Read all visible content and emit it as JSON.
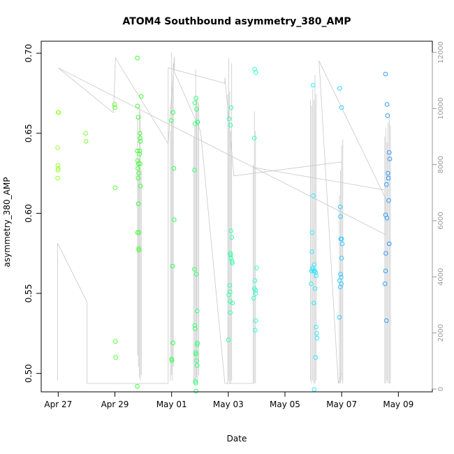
{
  "chart_data": {
    "type": "scatter",
    "title": "ATOM4 Southbound asymmetry_380_AMP",
    "xlabel": "Date",
    "ylabel": "asymmetry_380_AMP",
    "x_unit": "days since Apr 27",
    "xlim": [
      -0.6,
      13.2
    ],
    "ylim": [
      0.4885,
      0.7075
    ],
    "y2lim": [
      -100,
      12400
    ],
    "x_ticks": [
      {
        "value": 0,
        "label": "Apr 27"
      },
      {
        "value": 2,
        "label": "Apr 29"
      },
      {
        "value": 4,
        "label": "May 01"
      },
      {
        "value": 6,
        "label": "May 03"
      },
      {
        "value": 8,
        "label": "May 05"
      },
      {
        "value": 10,
        "label": "May 07"
      },
      {
        "value": 12,
        "label": "May 09"
      }
    ],
    "y_ticks": [
      {
        "value": 0.5,
        "label": "0.50"
      },
      {
        "value": 0.55,
        "label": "0.55"
      },
      {
        "value": 0.6,
        "label": "0.60"
      },
      {
        "value": 0.65,
        "label": "0.65"
      },
      {
        "value": 0.7,
        "label": "0.70"
      }
    ],
    "y2_ticks": [
      {
        "value": 0,
        "label": "0"
      },
      {
        "value": 2000,
        "label": "2000"
      },
      {
        "value": 4000,
        "label": "4000"
      },
      {
        "value": 6000,
        "label": "6000"
      },
      {
        "value": 8000,
        "label": "8000"
      },
      {
        "value": 10000,
        "label": "10000"
      },
      {
        "value": 12000,
        "label": "12000"
      }
    ],
    "color_scale": {
      "start": "#99ff33",
      "mid1": "#33ff33",
      "mid2": "#33ffff",
      "end": "#3399ff"
    },
    "line_color": "#c8c8c8",
    "points": [
      {
        "x": 0.0,
        "y": 0.663
      },
      {
        "x": 0.02,
        "y": 0.663
      },
      {
        "x": -0.02,
        "y": 0.641
      },
      {
        "x": -0.01,
        "y": 0.63
      },
      {
        "x": 0.0,
        "y": 0.628
      },
      {
        "x": -0.01,
        "y": 0.627
      },
      {
        "x": -0.02,
        "y": 0.622
      },
      {
        "x": 0.97,
        "y": 0.65
      },
      {
        "x": 0.98,
        "y": 0.645
      },
      {
        "x": 1.99,
        "y": 0.668
      },
      {
        "x": 2.0,
        "y": 0.666
      },
      {
        "x": 2.01,
        "y": 0.616
      },
      {
        "x": 2.02,
        "y": 0.52
      },
      {
        "x": 2.03,
        "y": 0.51
      },
      {
        "x": 2.79,
        "y": 0.697
      },
      {
        "x": 2.8,
        "y": 0.667
      },
      {
        "x": 2.82,
        "y": 0.66
      },
      {
        "x": 2.79,
        "y": 0.639
      },
      {
        "x": 2.8,
        "y": 0.633
      },
      {
        "x": 2.83,
        "y": 0.631
      },
      {
        "x": 2.81,
        "y": 0.628
      },
      {
        "x": 2.84,
        "y": 0.625
      },
      {
        "x": 2.82,
        "y": 0.622
      },
      {
        "x": 2.83,
        "y": 0.606
      },
      {
        "x": 2.8,
        "y": 0.588
      },
      {
        "x": 2.85,
        "y": 0.588
      },
      {
        "x": 2.84,
        "y": 0.578
      },
      {
        "x": 2.85,
        "y": 0.577
      },
      {
        "x": 2.79,
        "y": 0.492
      },
      {
        "x": 2.88,
        "y": 0.65
      },
      {
        "x": 2.89,
        "y": 0.647
      },
      {
        "x": 2.9,
        "y": 0.645
      },
      {
        "x": 2.88,
        "y": 0.639
      },
      {
        "x": 2.87,
        "y": 0.637
      },
      {
        "x": 2.89,
        "y": 0.631
      },
      {
        "x": 2.9,
        "y": 0.617
      },
      {
        "x": 2.93,
        "y": 0.673
      },
      {
        "x": 3.99,
        "y": 0.658
      },
      {
        "x": 4.05,
        "y": 0.663
      },
      {
        "x": 4.08,
        "y": 0.628
      },
      {
        "x": 4.09,
        "y": 0.596
      },
      {
        "x": 4.03,
        "y": 0.567
      },
      {
        "x": 4.05,
        "y": 0.519
      },
      {
        "x": 4.0,
        "y": 0.509
      },
      {
        "x": 4.01,
        "y": 0.508
      },
      {
        "x": 4.82,
        "y": 0.669
      },
      {
        "x": 4.86,
        "y": 0.672
      },
      {
        "x": 4.88,
        "y": 0.665
      },
      {
        "x": 4.83,
        "y": 0.656
      },
      {
        "x": 4.91,
        "y": 0.657
      },
      {
        "x": 4.92,
        "y": 0.657
      },
      {
        "x": 4.81,
        "y": 0.627
      },
      {
        "x": 4.81,
        "y": 0.565
      },
      {
        "x": 4.87,
        "y": 0.562
      },
      {
        "x": 4.9,
        "y": 0.539
      },
      {
        "x": 4.82,
        "y": 0.53
      },
      {
        "x": 4.83,
        "y": 0.528
      },
      {
        "x": 4.91,
        "y": 0.519
      },
      {
        "x": 4.9,
        "y": 0.518
      },
      {
        "x": 4.85,
        "y": 0.513
      },
      {
        "x": 4.86,
        "y": 0.512
      },
      {
        "x": 4.88,
        "y": 0.508
      },
      {
        "x": 4.9,
        "y": 0.505
      },
      {
        "x": 4.84,
        "y": 0.495
      },
      {
        "x": 4.85,
        "y": 0.494
      },
      {
        "x": 4.86,
        "y": 0.489
      },
      {
        "x": 6.03,
        "y": 0.659
      },
      {
        "x": 6.1,
        "y": 0.666
      },
      {
        "x": 6.08,
        "y": 0.655
      },
      {
        "x": 6.09,
        "y": 0.589
      },
      {
        "x": 6.12,
        "y": 0.585
      },
      {
        "x": 6.07,
        "y": 0.575
      },
      {
        "x": 6.08,
        "y": 0.574
      },
      {
        "x": 6.09,
        "y": 0.572
      },
      {
        "x": 6.13,
        "y": 0.57
      },
      {
        "x": 6.14,
        "y": 0.569
      },
      {
        "x": 6.05,
        "y": 0.555
      },
      {
        "x": 6.02,
        "y": 0.549
      },
      {
        "x": 6.06,
        "y": 0.551
      },
      {
        "x": 6.07,
        "y": 0.545
      },
      {
        "x": 6.15,
        "y": 0.544
      },
      {
        "x": 6.07,
        "y": 0.538
      },
      {
        "x": 6.01,
        "y": 0.521
      },
      {
        "x": 6.93,
        "y": 0.69
      },
      {
        "x": 6.97,
        "y": 0.688
      },
      {
        "x": 6.92,
        "y": 0.647
      },
      {
        "x": 7.0,
        "y": 0.566
      },
      {
        "x": 6.94,
        "y": 0.558
      },
      {
        "x": 6.92,
        "y": 0.553
      },
      {
        "x": 6.96,
        "y": 0.552
      },
      {
        "x": 6.97,
        "y": 0.55
      },
      {
        "x": 6.9,
        "y": 0.547
      },
      {
        "x": 6.97,
        "y": 0.533
      },
      {
        "x": 6.95,
        "y": 0.527
      },
      {
        "x": 8.92,
        "y": 0.556
      },
      {
        "x": 8.95,
        "y": 0.576
      },
      {
        "x": 8.96,
        "y": 0.588
      },
      {
        "x": 8.99,
        "y": 0.68
      },
      {
        "x": 9.0,
        "y": 0.611
      },
      {
        "x": 9.03,
        "y": 0.568
      },
      {
        "x": 8.94,
        "y": 0.564
      },
      {
        "x": 8.97,
        "y": 0.565
      },
      {
        "x": 8.98,
        "y": 0.566
      },
      {
        "x": 9.02,
        "y": 0.564
      },
      {
        "x": 9.05,
        "y": 0.564
      },
      {
        "x": 9.08,
        "y": 0.563
      },
      {
        "x": 9.1,
        "y": 0.561
      },
      {
        "x": 9.06,
        "y": 0.553
      },
      {
        "x": 9.02,
        "y": 0.544
      },
      {
        "x": 9.1,
        "y": 0.529
      },
      {
        "x": 9.12,
        "y": 0.525
      },
      {
        "x": 9.13,
        "y": 0.522
      },
      {
        "x": 9.08,
        "y": 0.51
      },
      {
        "x": 9.03,
        "y": 0.49
      },
      {
        "x": 9.93,
        "y": 0.678
      },
      {
        "x": 10.0,
        "y": 0.666
      },
      {
        "x": 9.95,
        "y": 0.604
      },
      {
        "x": 9.96,
        "y": 0.598
      },
      {
        "x": 9.97,
        "y": 0.584
      },
      {
        "x": 10.0,
        "y": 0.584
      },
      {
        "x": 10.02,
        "y": 0.581
      },
      {
        "x": 10.0,
        "y": 0.572
      },
      {
        "x": 9.96,
        "y": 0.562
      },
      {
        "x": 9.98,
        "y": 0.56
      },
      {
        "x": 9.93,
        "y": 0.558
      },
      {
        "x": 9.99,
        "y": 0.556
      },
      {
        "x": 9.95,
        "y": 0.554
      },
      {
        "x": 9.92,
        "y": 0.535
      },
      {
        "x": 11.55,
        "y": 0.687
      },
      {
        "x": 11.6,
        "y": 0.668
      },
      {
        "x": 11.62,
        "y": 0.661
      },
      {
        "x": 11.68,
        "y": 0.638
      },
      {
        "x": 11.7,
        "y": 0.634
      },
      {
        "x": 11.63,
        "y": 0.625
      },
      {
        "x": 11.65,
        "y": 0.622
      },
      {
        "x": 11.58,
        "y": 0.618
      },
      {
        "x": 11.66,
        "y": 0.608
      },
      {
        "x": 11.55,
        "y": 0.599
      },
      {
        "x": 11.6,
        "y": 0.597
      },
      {
        "x": 11.68,
        "y": 0.581
      },
      {
        "x": 11.56,
        "y": 0.575
      },
      {
        "x": 11.55,
        "y": 0.564
      },
      {
        "x": 11.53,
        "y": 0.556
      },
      {
        "x": 11.58,
        "y": 0.533
      }
    ],
    "series2_polyline": [
      [
        -0.02,
        300
      ],
      [
        -0.02,
        5200
      ],
      [
        1.02,
        3100
      ],
      [
        1.02,
        200
      ],
      [
        3.88,
        200
      ],
      [
        3.88,
        11450
      ],
      [
        5.88,
        10900
      ],
      [
        5.88,
        11100
      ],
      [
        6.2,
        7600
      ],
      [
        10.0,
        8100
      ],
      [
        10.0,
        600
      ],
      [
        9.88,
        200
      ],
      [
        9.2,
        11700
      ],
      [
        11.55,
        6800
      ],
      [
        11.56,
        5500
      ],
      [
        0.0,
        11450
      ],
      [
        1.95,
        9850
      ],
      [
        2.02,
        11800
      ],
      [
        3.88,
        8750
      ],
      [
        4.1,
        11850
      ],
      [
        4.1,
        11300
      ],
      [
        5.02,
        9200
      ],
      [
        5.88,
        200
      ],
      [
        6.88,
        200
      ],
      [
        6.88,
        7900
      ],
      [
        11.5,
        7100
      ]
    ],
    "series2_spikes": [
      {
        "x": 2.8,
        "low": 1200,
        "high": 9600
      },
      {
        "x": 2.83,
        "low": 800,
        "high": 8200
      },
      {
        "x": 2.86,
        "low": 400,
        "high": 10100
      },
      {
        "x": 2.9,
        "low": 300,
        "high": 9900
      },
      {
        "x": 2.93,
        "low": 500,
        "high": 7800
      },
      {
        "x": 3.96,
        "low": 300,
        "high": 9200
      },
      {
        "x": 4.0,
        "low": 500,
        "high": 12000
      },
      {
        "x": 4.03,
        "low": 300,
        "high": 10800
      },
      {
        "x": 4.06,
        "low": 800,
        "high": 11600
      },
      {
        "x": 4.78,
        "low": 300,
        "high": 9000
      },
      {
        "x": 4.82,
        "low": 200,
        "high": 9400
      },
      {
        "x": 4.85,
        "low": 300,
        "high": 11400
      },
      {
        "x": 4.88,
        "low": 400,
        "high": 10300
      },
      {
        "x": 4.92,
        "low": 200,
        "high": 10400
      },
      {
        "x": 4.96,
        "low": 500,
        "high": 10200
      },
      {
        "x": 5.98,
        "low": 200,
        "high": 10500
      },
      {
        "x": 6.02,
        "low": 300,
        "high": 11800
      },
      {
        "x": 6.05,
        "low": 200,
        "high": 10600
      },
      {
        "x": 6.08,
        "low": 200,
        "high": 9200
      },
      {
        "x": 6.12,
        "low": 300,
        "high": 11600
      },
      {
        "x": 6.88,
        "low": 200,
        "high": 8000
      },
      {
        "x": 6.92,
        "low": 200,
        "high": 9900
      },
      {
        "x": 6.96,
        "low": 200,
        "high": 9200
      },
      {
        "x": 8.9,
        "low": 300,
        "high": 10300
      },
      {
        "x": 8.94,
        "low": 200,
        "high": 10100
      },
      {
        "x": 8.98,
        "low": 300,
        "high": 10700
      },
      {
        "x": 9.02,
        "low": 200,
        "high": 10300
      },
      {
        "x": 9.06,
        "low": 200,
        "high": 11200
      },
      {
        "x": 9.1,
        "low": 300,
        "high": 10500
      },
      {
        "x": 9.92,
        "low": 200,
        "high": 6900
      },
      {
        "x": 9.96,
        "low": 200,
        "high": 7800
      },
      {
        "x": 10.0,
        "low": 300,
        "high": 8700
      },
      {
        "x": 10.04,
        "low": 200,
        "high": 8900
      },
      {
        "x": 11.52,
        "low": 200,
        "high": 9000
      },
      {
        "x": 11.56,
        "low": 200,
        "high": 9300
      },
      {
        "x": 11.6,
        "low": 300,
        "high": 8800
      },
      {
        "x": 11.64,
        "low": 200,
        "high": 9500
      },
      {
        "x": 11.68,
        "low": 200,
        "high": 9800
      },
      {
        "x": 11.72,
        "low": 200,
        "high": 9400
      }
    ]
  }
}
